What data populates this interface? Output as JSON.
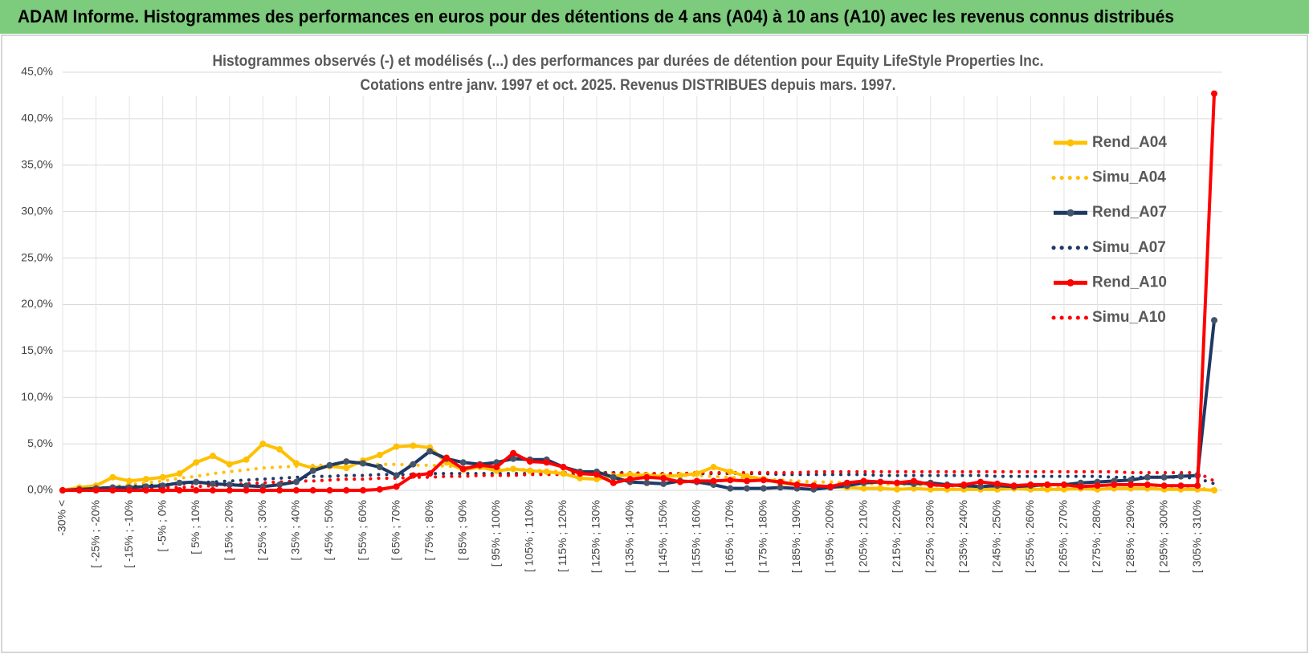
{
  "header": {
    "title": "ADAM Informe. Histogrammes des performances en euros pour des détentions de 4 ans (A04) à 10 ans (A10) avec les revenus connus distribués"
  },
  "chart_data": {
    "type": "line",
    "title": "Histogrammes observés (-) et modélisés (...) des performances par durées de détention pour Equity LifeStyle  Properties Inc.",
    "subtitle": "Cotations entre janv. 1997 et oct. 2025.  Revenus DISTRIBUES depuis mars. 1997.",
    "categories": [
      "-30% <",
      null,
      "[ -25% ; -20%",
      null,
      "[ -15% ; -10%",
      null,
      "[ -5% ; 0%",
      null,
      "[ 5% ; 10%",
      null,
      "[ 15% ; 20%",
      null,
      "[ 25% ; 30%",
      null,
      "[ 35% ; 40%",
      null,
      "[ 45% ; 50%",
      null,
      "[ 55% ; 60%",
      null,
      "[ 65% ; 70%",
      null,
      "[ 75% ; 80%",
      null,
      "[ 85% ; 90%",
      null,
      "[ 95% ; 100%",
      null,
      "[ 105% ; 110%",
      null,
      "[ 115% ; 120%",
      null,
      "[ 125% ; 130%",
      null,
      "[ 135% ; 140%",
      null,
      "[ 145% ; 150%",
      null,
      "[ 155% ; 160%",
      null,
      "[ 165% ; 170%",
      null,
      "[ 175% ; 180%",
      null,
      "[ 185% ; 190%",
      null,
      "[ 195% ; 200%",
      null,
      "[ 205% ; 210%",
      null,
      "[ 215% ; 220%",
      null,
      "[ 225% ; 230%",
      null,
      "[ 235% ; 240%",
      null,
      "[ 245% ; 250%",
      null,
      "[ 255% ; 260%",
      null,
      "[ 265% ; 270%",
      null,
      "[ 275% ; 280%",
      null,
      "[ 285% ; 290%",
      null,
      "[ 295% ; 300%",
      null,
      "[ 305% ; 310%",
      null
    ],
    "ylim": [
      0,
      45
    ],
    "yticks": [
      {
        "value": 0,
        "label": "0,0%"
      },
      {
        "value": 5,
        "label": "5,0%"
      },
      {
        "value": 10,
        "label": "10,0%"
      },
      {
        "value": 15,
        "label": "15,0%"
      },
      {
        "value": 20,
        "label": "20,0%"
      },
      {
        "value": 25,
        "label": "25,0%"
      },
      {
        "value": 30,
        "label": "30,0%"
      },
      {
        "value": 35,
        "label": "35,0%"
      },
      {
        "value": 40,
        "label": "40,0%"
      },
      {
        "value": 45,
        "label": "45,0%"
      }
    ],
    "grid": true,
    "legend": "right",
    "series": [
      {
        "name": "Rend_A04",
        "color": "#ffc000",
        "style": "solid",
        "markers": true,
        "values": [
          0,
          0.3,
          0.5,
          1.4,
          1.0,
          1.2,
          1.4,
          1.8,
          3.0,
          3.7,
          2.8,
          3.3,
          5.0,
          4.4,
          2.9,
          2.4,
          2.6,
          2.4,
          3.2,
          3.8,
          4.7,
          4.8,
          4.6,
          3.0,
          2.2,
          2.5,
          2.1,
          2.3,
          2.1,
          2.0,
          1.8,
          1.3,
          1.2,
          1.5,
          1.7,
          1.6,
          1.5,
          1.6,
          1.8,
          2.5,
          2.0,
          1.5,
          1.2,
          0.8,
          0.6,
          0.5,
          0.4,
          0.3,
          0.2,
          0.2,
          0.1,
          0.2,
          0.1,
          0.1,
          0.1,
          0.1,
          0.1,
          0.2,
          0.1,
          0.1,
          0.1,
          0.2,
          0.1,
          0.2,
          0.2,
          0.2,
          0.1,
          0.1,
          0.1,
          0.0
        ]
      },
      {
        "name": "Simu_A04",
        "color": "#ffc000",
        "style": "dotted",
        "markers": false,
        "values": [
          0,
          0.1,
          0.2,
          0.4,
          0.6,
          0.8,
          1.0,
          1.3,
          1.5,
          1.8,
          2.0,
          2.2,
          2.4,
          2.5,
          2.6,
          2.7,
          2.7,
          2.8,
          2.8,
          2.8,
          2.8,
          2.7,
          2.7,
          2.6,
          2.5,
          2.4,
          2.3,
          2.3,
          2.2,
          2.1,
          2.0,
          2.0,
          1.9,
          1.9,
          1.8,
          1.8,
          1.7,
          1.6,
          1.6,
          1.5,
          1.4,
          1.3,
          1.2,
          1.1,
          1.0,
          0.9,
          0.9,
          0.8,
          0.7,
          0.7,
          0.6,
          0.6,
          0.5,
          0.5,
          0.4,
          0.4,
          0.4,
          0.3,
          0.3,
          0.3,
          0.3,
          0.2,
          0.2,
          0.2,
          0.2,
          0.2,
          0.2,
          0.2,
          0.2,
          0.1
        ]
      },
      {
        "name": "Rend_A07",
        "color": "#1f3864",
        "style": "solid",
        "markers": true,
        "values": [
          0,
          0.1,
          0.2,
          0.3,
          0.3,
          0.4,
          0.5,
          0.8,
          0.9,
          0.7,
          0.6,
          0.5,
          0.4,
          0.6,
          0.9,
          2.1,
          2.7,
          3.1,
          2.9,
          2.5,
          1.6,
          2.8,
          4.2,
          3.4,
          3.0,
          2.8,
          3.0,
          3.4,
          3.3,
          3.3,
          2.5,
          2.0,
          2.0,
          1.4,
          0.9,
          0.8,
          0.7,
          1.0,
          0.9,
          0.6,
          0.2,
          0.2,
          0.2,
          0.3,
          0.2,
          0.1,
          0.3,
          0.5,
          0.8,
          0.9,
          0.8,
          0.7,
          0.8,
          0.6,
          0.5,
          0.4,
          0.5,
          0.4,
          0.5,
          0.6,
          0.6,
          0.8,
          0.9,
          1.0,
          1.1,
          1.4,
          1.4,
          1.5,
          1.6,
          18.3
        ]
      },
      {
        "name": "Simu_A07",
        "color": "#1f3864",
        "style": "dotted",
        "markers": false,
        "values": [
          0,
          0.1,
          0.2,
          0.3,
          0.4,
          0.5,
          0.6,
          0.7,
          0.8,
          0.9,
          1.0,
          1.1,
          1.2,
          1.3,
          1.4,
          1.5,
          1.5,
          1.6,
          1.6,
          1.7,
          1.7,
          1.7,
          1.8,
          1.8,
          1.8,
          1.8,
          1.8,
          1.8,
          1.8,
          1.8,
          1.9,
          1.9,
          1.9,
          1.9,
          1.9,
          1.8,
          1.8,
          1.8,
          1.8,
          1.8,
          1.8,
          1.8,
          1.8,
          1.7,
          1.7,
          1.7,
          1.7,
          1.7,
          1.7,
          1.6,
          1.6,
          1.6,
          1.6,
          1.6,
          1.6,
          1.6,
          1.5,
          1.5,
          1.5,
          1.5,
          1.5,
          1.5,
          1.5,
          1.4,
          1.4,
          1.4,
          1.4,
          1.4,
          1.3,
          0.7
        ]
      },
      {
        "name": "Rend_A10",
        "color": "#ff0000",
        "style": "solid",
        "markers": true,
        "values": [
          0,
          0,
          0,
          0,
          0,
          0,
          0,
          0,
          0,
          0,
          0,
          0,
          0,
          0,
          0,
          0,
          0,
          0,
          0,
          0.1,
          0.4,
          1.6,
          1.8,
          3.5,
          2.3,
          2.7,
          2.5,
          4.0,
          3.1,
          3.0,
          2.5,
          1.8,
          1.7,
          0.8,
          1.2,
          1.4,
          1.3,
          0.9,
          1.0,
          1.0,
          1.1,
          1.0,
          1.1,
          0.9,
          0.6,
          0.5,
          0.4,
          0.8,
          1.0,
          0.9,
          0.8,
          1.0,
          0.6,
          0.5,
          0.6,
          0.9,
          0.7,
          0.5,
          0.6,
          0.6,
          0.6,
          0.4,
          0.5,
          0.6,
          0.6,
          0.6,
          0.5,
          0.5,
          0.5,
          42.7
        ]
      },
      {
        "name": "Simu_A10",
        "color": "#ff0000",
        "style": "dotted",
        "markers": false,
        "values": [
          0,
          0,
          0.1,
          0.1,
          0.2,
          0.2,
          0.3,
          0.3,
          0.4,
          0.5,
          0.6,
          0.7,
          0.8,
          0.9,
          1.0,
          1.0,
          1.1,
          1.2,
          1.2,
          1.3,
          1.3,
          1.4,
          1.4,
          1.5,
          1.5,
          1.6,
          1.6,
          1.6,
          1.7,
          1.7,
          1.7,
          1.7,
          1.8,
          1.8,
          1.8,
          1.8,
          1.8,
          1.8,
          1.9,
          1.9,
          1.9,
          1.9,
          1.9,
          1.9,
          1.9,
          2.0,
          2.0,
          2.0,
          2.0,
          2.0,
          2.0,
          2.0,
          2.0,
          2.0,
          2.0,
          2.0,
          2.0,
          2.0,
          2.0,
          2.0,
          2.0,
          2.0,
          2.0,
          2.0,
          1.9,
          1.9,
          1.9,
          1.9,
          1.9,
          1.0
        ]
      }
    ]
  }
}
